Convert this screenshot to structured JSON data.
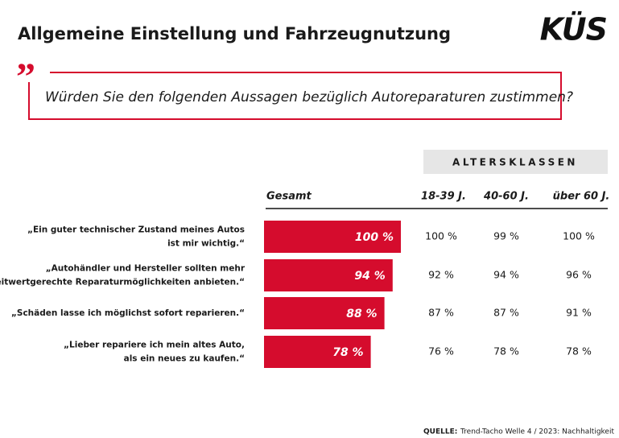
{
  "chart_data": {
    "type": "bar",
    "orientation": "horizontal",
    "title": "Allgemeine Einstellung und Fahrzeugnutzung",
    "logo": "KÜS",
    "question": "Würden Sie den folgenden Aussagen bezüglich Autoreparaturen zustimmen?",
    "categories": [
      [
        "„Ein guter technischer Zustand meines Autos",
        "ist mir wichtig.“"
      ],
      [
        "„Autohändler und Hersteller sollten mehr",
        "zeitwertgerechte Reparaturmöglichkeiten anbieten.“"
      ],
      [
        "„Schäden lasse ich möglichst sofort reparieren.“"
      ],
      [
        "„Lieber repariere ich mein altes Auto,",
        "als ein neues zu kaufen.“"
      ]
    ],
    "series": [
      {
        "name": "Gesamt",
        "color": "#d50c2d",
        "values": [
          100,
          94,
          88,
          78
        ],
        "value_labels": [
          "100 %",
          "94 %",
          "88 %",
          "78 %"
        ]
      }
    ],
    "xlim": [
      0,
      100
    ],
    "age_groups": {
      "header": "ALTERSKLASSEN",
      "columns": [
        {
          "name": "18-39 J.",
          "values": [
            100,
            92,
            87,
            76
          ],
          "value_labels": [
            "100 %",
            "92 %",
            "87 %",
            "76 %"
          ]
        },
        {
          "name": "40-60 J.",
          "values": [
            99,
            94,
            87,
            78
          ],
          "value_labels": [
            "99 %",
            "94 %",
            "87 %",
            "78 %"
          ]
        },
        {
          "name": "über 60 J.",
          "values": [
            100,
            96,
            91,
            78
          ],
          "value_labels": [
            "100 %",
            "96 %",
            "91 %",
            "78 %"
          ]
        }
      ]
    },
    "source_label": "QUELLE:",
    "source": "Trend-Tacho Welle 4 / 2023: Nachhaltigkeit"
  }
}
